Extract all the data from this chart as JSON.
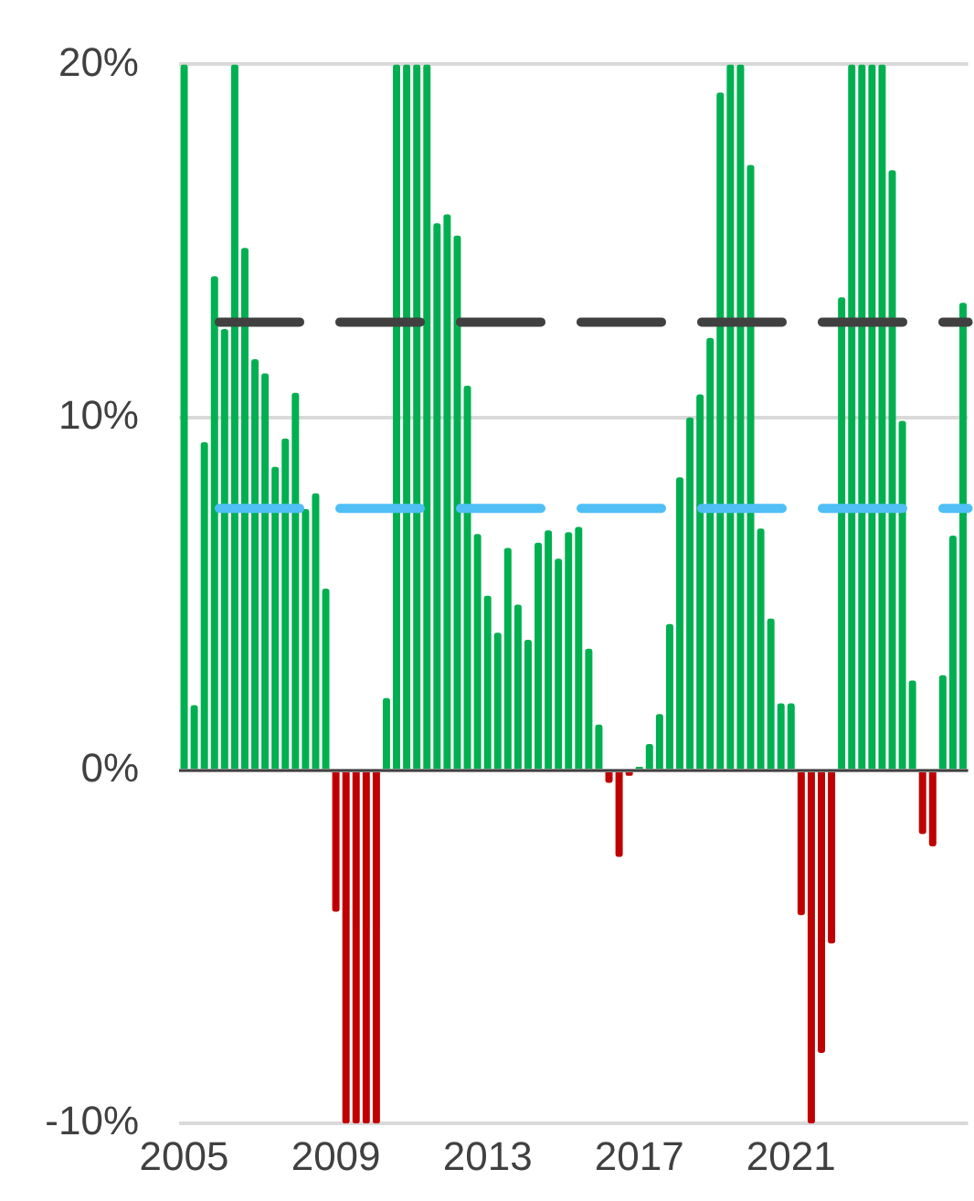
{
  "chart_data": {
    "type": "bar",
    "categories": [
      "2005",
      null,
      null,
      null,
      null,
      null,
      null,
      null,
      null,
      null,
      null,
      null,
      null,
      null,
      null,
      "2009",
      null,
      null,
      null,
      null,
      null,
      null,
      null,
      null,
      null,
      null,
      null,
      null,
      null,
      null,
      "2013",
      null,
      null,
      null,
      null,
      null,
      null,
      null,
      null,
      null,
      null,
      null,
      null,
      null,
      null,
      "2017",
      null,
      null,
      null,
      null,
      null,
      null,
      null,
      null,
      null,
      null,
      null,
      null,
      null,
      null,
      "2021",
      null,
      null,
      null,
      null,
      null,
      null,
      null,
      null,
      null,
      null,
      null,
      null,
      null,
      null,
      null,
      null,
      null
    ],
    "values": [
      20,
      1.85,
      9.3,
      14.0,
      12.5,
      20,
      14.8,
      11.65,
      11.25,
      8.6,
      9.4,
      10.7,
      7.4,
      7.85,
      5.15,
      -4.0,
      -10,
      -10,
      -10,
      -10,
      2.05,
      20,
      20,
      20,
      20,
      15.5,
      15.75,
      15.15,
      10.9,
      6.7,
      4.95,
      3.9,
      6.3,
      4.7,
      3.7,
      6.45,
      6.8,
      6.0,
      6.75,
      6.9,
      3.45,
      1.3,
      -0.35,
      -2.45,
      -0.15,
      0.1,
      0.75,
      1.6,
      4.15,
      8.3,
      10.0,
      10.65,
      12.25,
      19.2,
      20,
      20,
      17.15,
      6.85,
      4.3,
      1.9,
      1.9,
      -4.1,
      -10,
      -8.0,
      -4.9,
      13.4,
      20,
      20,
      20,
      20,
      17.0,
      9.9,
      2.55,
      -1.8,
      -2.15,
      2.7,
      6.65,
      13.25
    ],
    "colors": [
      "#00b050",
      "#00b050",
      "#00b050",
      "#00b050",
      "#00b050",
      "#00b050",
      "#00b050",
      "#00b050",
      "#00b050",
      "#00b050",
      "#00b050",
      "#00b050",
      "#00b050",
      "#00b050",
      "#00b050",
      "#c00000",
      "#c00000",
      "#c00000",
      "#c00000",
      "#c00000",
      "#00b050",
      "#00b050",
      "#00b050",
      "#00b050",
      "#00b050",
      "#00b050",
      "#00b050",
      "#00b050",
      "#00b050",
      "#00b050",
      "#00b050",
      "#00b050",
      "#00b050",
      "#00b050",
      "#00b050",
      "#00b050",
      "#00b050",
      "#00b050",
      "#00b050",
      "#00b050",
      "#00b050",
      "#00b050",
      "#c00000",
      "#c00000",
      "#c00000",
      "#00b050",
      "#00b050",
      "#00b050",
      "#00b050",
      "#00b050",
      "#00b050",
      "#00b050",
      "#00b050",
      "#00b050",
      "#00b050",
      "#00b050",
      "#00b050",
      "#00b050",
      "#00b050",
      "#00b050",
      "#00b050",
      "#c00000",
      "#c00000",
      "#c00000",
      "#c00000",
      "#00b050",
      "#00b050",
      "#00b050",
      "#00b050",
      "#00b050",
      "#00b050",
      "#00b050",
      "#00b050",
      "#c00000",
      "#c00000",
      "#00b050",
      "#00b050",
      "#00b050"
    ],
    "ylim": [
      -10,
      20
    ],
    "yticks": [
      {
        "value": -10,
        "label": "-10%"
      },
      {
        "value": 0,
        "label": "0%"
      },
      {
        "value": 10,
        "label": "10%"
      },
      {
        "value": 20,
        "label": "20%"
      }
    ],
    "grid": "y",
    "ref_lines": [
      {
        "axis": "y",
        "value": 12.7,
        "color": "#404040",
        "line_style": "dashed"
      },
      {
        "axis": "y",
        "value": 7.42,
        "color": "#4fbff5",
        "line_style": "dashed"
      }
    ]
  }
}
